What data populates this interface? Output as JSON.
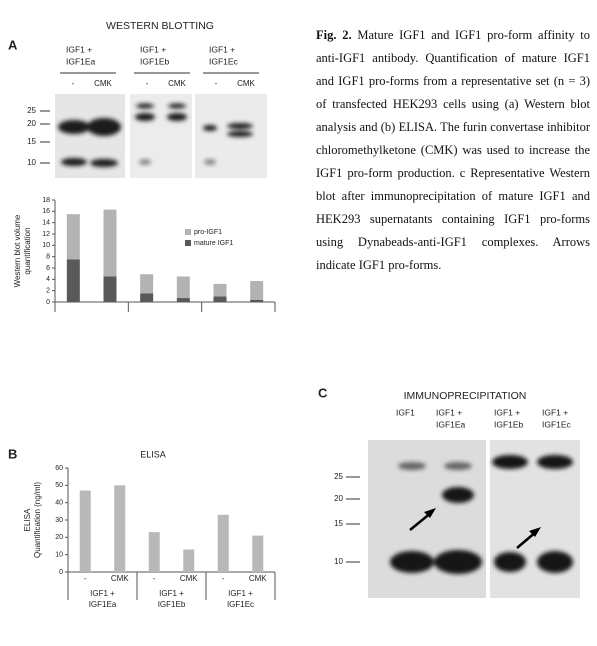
{
  "panel_a": {
    "label": "A",
    "title": "WESTERN BLOTTING",
    "lanes": [
      {
        "header": [
          "IGF1 +",
          "IGF1Ea"
        ],
        "conditions": [
          "-",
          "CMK"
        ]
      },
      {
        "header": [
          "IGF1 +",
          "IGF1Eb"
        ],
        "conditions": [
          "-",
          "CMK"
        ]
      },
      {
        "header": [
          "IGF1 +",
          "IGF1Ec"
        ],
        "conditions": [
          "-",
          "CMK"
        ]
      }
    ],
    "markers": [
      25,
      20,
      15,
      10
    ]
  },
  "panel_b": {
    "label": "B"
  },
  "panel_c": {
    "label": "C",
    "title": "IMMUNOPRECIPITATION",
    "lanes": [
      [
        "IGF1"
      ],
      [
        "IGF1 +",
        "IGF1Ea"
      ],
      [
        "IGF1 +",
        "IGF1Eb"
      ],
      [
        "IGF1 +",
        "IGF1Ec"
      ]
    ],
    "markers": [
      25,
      20,
      15,
      10
    ]
  },
  "chart_data": [
    {
      "type": "bar",
      "stacked": true,
      "ylabel": [
        "Western blot volume",
        "quantification"
      ],
      "categories": [
        null,
        null,
        null,
        null,
        null,
        null
      ],
      "series": [
        {
          "name": "pro-IGF1",
          "color": "#b3b3b3",
          "values": [
            8,
            11.8,
            3.4,
            3.8,
            2.2,
            3.3
          ]
        },
        {
          "name": "mature IGF1",
          "color": "#595959",
          "values": [
            7.5,
            4.5,
            1.5,
            0.7,
            1,
            0.4
          ]
        }
      ],
      "ylim": [
        0,
        18
      ],
      "yticks": [
        0,
        2,
        4,
        6,
        8,
        10,
        12,
        14,
        16,
        18
      ],
      "legend": "upper right"
    },
    {
      "type": "bar",
      "title": "ELISA",
      "ylabel": [
        "ELISA",
        "Quantification (ng/ml)"
      ],
      "categories": [
        "-",
        "CMK",
        "-",
        "CMK",
        "-",
        "CMK"
      ],
      "groups": [
        [
          "IGF1 +",
          "IGF1Ea"
        ],
        [
          "IGF1 +",
          "IGF1Eb"
        ],
        [
          "IGF1 +",
          "IGF1Ec"
        ]
      ],
      "values": [
        47,
        50,
        23,
        13,
        33,
        21
      ],
      "color": "#b8b8b8",
      "ylim": [
        0,
        60
      ],
      "yticks": [
        0,
        10,
        20,
        30,
        40,
        50,
        60
      ]
    }
  ],
  "caption": {
    "label": "Fig. 2.",
    "body": "Mature IGF1 and IGF1 pro-form affinity to anti-IGF1 antibody. Quantification of mature IGF1 and IGF1 pro-forms from a representative set (n = 3) of transfected HEK293 cells using (a) Western blot analysis and (b) ELISA. The furin convertase inhibitor chloromethylketone (CMK) was used to increase the IGF1 pro-form production. c Representative Western blot after immunoprecipitation of mature IGF1 and HEK293 supernatants containing IGF1 pro-forms using Dynabeads-anti-IGF1 complexes. Arrows indicate IGF1 pro-forms."
  }
}
